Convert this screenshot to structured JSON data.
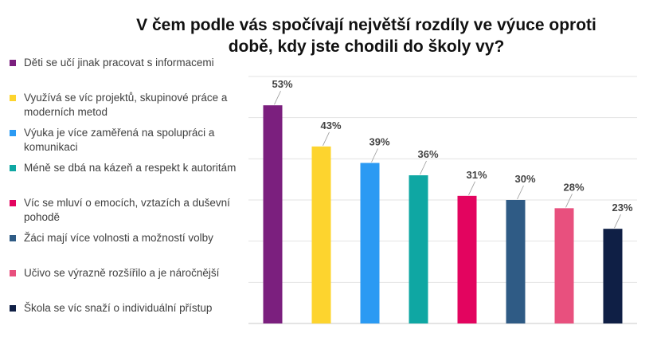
{
  "chart_data": {
    "type": "bar",
    "title": "V čem podle vás spočívají největší rozdíly ve výuce oproti době, kdy jste chodili do školy vy?",
    "xlabel": "",
    "ylabel": "",
    "ylim": [
      0,
      60
    ],
    "grid": true,
    "legend_position": "left",
    "categories": [
      "Děti se učí jinak pracovat s informacemi",
      "Využívá se víc projektů, skupinové práce a moderních metod",
      "Výuka je více zaměřená na spolupráci a komunikaci",
      "Méně se dbá na kázeň a respekt k autoritám",
      "Víc se mluví o emocích, vztazích a duševní pohodě",
      "Žáci mají více volnosti a možností volby",
      "Učivo se výrazně rozšířilo a je náročnější",
      "Škola se víc snaží o individuální přístup"
    ],
    "values": [
      53,
      43,
      39,
      36,
      31,
      30,
      28,
      23
    ],
    "value_labels": [
      "53%",
      "43%",
      "39%",
      "36%",
      "31%",
      "30%",
      "28%",
      "23%"
    ],
    "colors": [
      "#7b1f7e",
      "#fdd42e",
      "#2b9af3",
      "#0fa7a3",
      "#e3045f",
      "#2f5b85",
      "#e8507e",
      "#0f1f45"
    ]
  }
}
